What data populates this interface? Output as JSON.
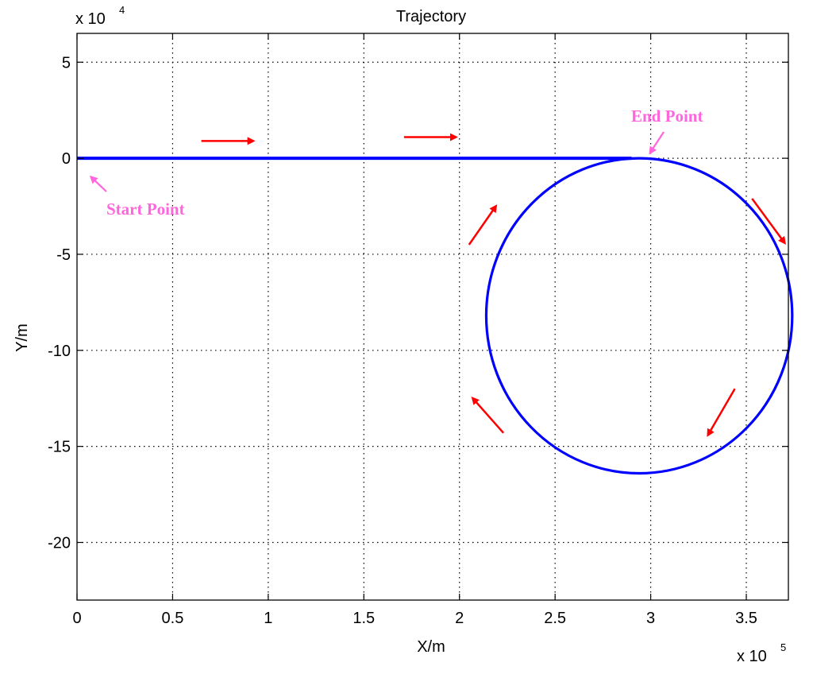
{
  "chart_data": {
    "type": "line",
    "title": "Trajectory",
    "xlabel": "X/m",
    "ylabel": "Y/m",
    "x_multiplier": "x 10",
    "x_multiplier_exp": "5",
    "y_multiplier": "x 10",
    "y_multiplier_exp": "4",
    "xlim": [
      0,
      3.72
    ],
    "ylim": [
      -23,
      6.5
    ],
    "xticks": [
      0,
      0.5,
      1,
      1.5,
      2,
      2.5,
      3,
      3.5
    ],
    "xtick_labels": [
      "0",
      "0.5",
      "1",
      "1.5",
      "2",
      "2.5",
      "3",
      "3.5"
    ],
    "yticks": [
      5,
      0,
      -5,
      -10,
      -15,
      -20
    ],
    "ytick_labels": [
      "5",
      "0",
      "-5",
      "-10",
      "-15",
      "-20"
    ],
    "grid": true,
    "series": [
      {
        "color": "#0000ff",
        "segments": [
          {
            "kind": "line",
            "points": [
              [
                0,
                0
              ],
              [
                2.9,
                0
              ]
            ]
          },
          {
            "kind": "circle",
            "center": [
              2.94,
              -8.2
            ],
            "radius_x": 0.8,
            "radius_y": 8.2
          }
        ]
      }
    ],
    "annotations": [
      {
        "text": "Start Point",
        "color": "#ff66dd",
        "at": [
          0.05,
          -0.7
        ]
      },
      {
        "text": "End Point",
        "color": "#ff66dd",
        "at": [
          3.0,
          0.2
        ]
      }
    ],
    "direction_arrows": [
      {
        "from": [
          0.65,
          0.9
        ],
        "to": [
          0.92,
          0.9
        ]
      },
      {
        "from": [
          1.71,
          1.1
        ],
        "to": [
          1.98,
          1.1
        ]
      },
      {
        "from": [
          3.53,
          -2.1
        ],
        "to": [
          3.7,
          -4.4
        ]
      },
      {
        "from": [
          3.44,
          -12.0
        ],
        "to": [
          3.3,
          -14.4
        ]
      },
      {
        "from": [
          2.23,
          -14.3
        ],
        "to": [
          2.07,
          -12.5
        ]
      },
      {
        "from": [
          2.05,
          -4.5
        ],
        "to": [
          2.19,
          -2.5
        ]
      }
    ],
    "arrow_color": "#ff0000"
  }
}
